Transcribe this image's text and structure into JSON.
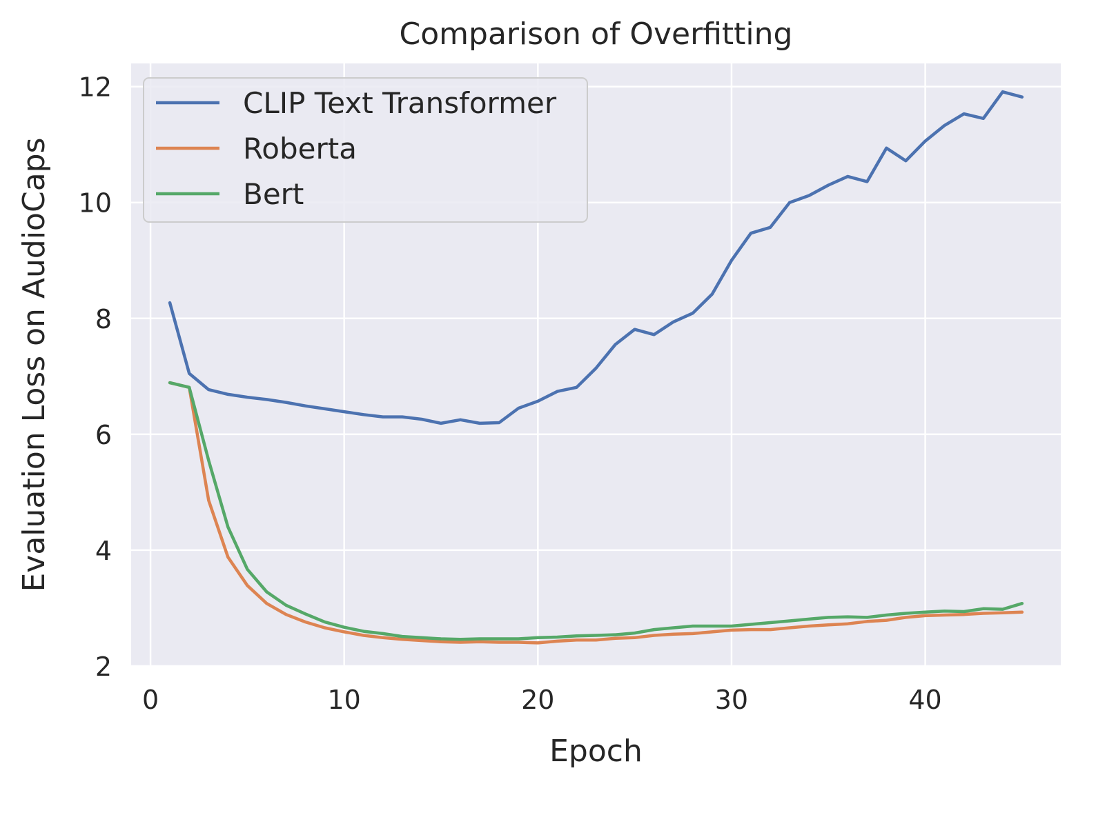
{
  "chart_data": {
    "type": "line",
    "title": "Comparison of Overfitting",
    "xlabel": "Epoch",
    "ylabel": "Evaluation Loss on AudioCaps",
    "xlim": [
      -1,
      47
    ],
    "ylim": [
      2,
      12.4
    ],
    "xticks": [
      "0",
      "10",
      "20",
      "30",
      "40"
    ],
    "yticks": [
      "2",
      "4",
      "6",
      "8",
      "10",
      "12"
    ],
    "grid": true,
    "legend_position": "upper-left",
    "background_color": "#eaeaf2",
    "grid_color": "#ffffff",
    "x": [
      1,
      2,
      3,
      4,
      5,
      6,
      7,
      8,
      9,
      10,
      11,
      12,
      13,
      14,
      15,
      16,
      17,
      18,
      19,
      20,
      21,
      22,
      23,
      24,
      25,
      26,
      27,
      28,
      29,
      30,
      31,
      32,
      33,
      34,
      35,
      36,
      37,
      38,
      39,
      40,
      41,
      42,
      43,
      44,
      45
    ],
    "series": [
      {
        "name": "CLIP Text Transformer",
        "color": "#4c72b0",
        "values": [
          8.27,
          7.05,
          6.77,
          6.69,
          6.64,
          6.6,
          6.55,
          6.49,
          6.44,
          6.39,
          6.34,
          6.3,
          6.3,
          6.26,
          6.19,
          6.25,
          6.19,
          6.2,
          6.45,
          6.57,
          6.74,
          6.81,
          7.14,
          7.55,
          7.81,
          7.72,
          7.94,
          8.09,
          8.42,
          9.0,
          9.47,
          9.57,
          10.0,
          10.12,
          10.3,
          10.45,
          10.36,
          10.94,
          10.72,
          11.06,
          11.33,
          11.53,
          11.45,
          11.91,
          11.82
        ]
      },
      {
        "name": "Roberta",
        "color": "#dd8452",
        "values": [
          6.89,
          6.81,
          4.86,
          3.88,
          3.39,
          3.08,
          2.89,
          2.76,
          2.66,
          2.59,
          2.53,
          2.49,
          2.46,
          2.44,
          2.42,
          2.41,
          2.42,
          2.41,
          2.41,
          2.4,
          2.43,
          2.45,
          2.45,
          2.48,
          2.49,
          2.53,
          2.55,
          2.56,
          2.59,
          2.62,
          2.63,
          2.63,
          2.66,
          2.69,
          2.71,
          2.73,
          2.77,
          2.79,
          2.84,
          2.87,
          2.88,
          2.89,
          2.91,
          2.92,
          2.93
        ]
      },
      {
        "name": "Bert",
        "color": "#55a868",
        "values": [
          6.89,
          6.81,
          5.55,
          4.4,
          3.67,
          3.28,
          3.05,
          2.9,
          2.76,
          2.67,
          2.6,
          2.56,
          2.51,
          2.49,
          2.47,
          2.46,
          2.47,
          2.47,
          2.47,
          2.49,
          2.5,
          2.52,
          2.53,
          2.54,
          2.57,
          2.63,
          2.66,
          2.69,
          2.69,
          2.69,
          2.72,
          2.75,
          2.78,
          2.81,
          2.84,
          2.85,
          2.84,
          2.88,
          2.91,
          2.93,
          2.95,
          2.94,
          2.99,
          2.98,
          3.08
        ]
      }
    ]
  }
}
